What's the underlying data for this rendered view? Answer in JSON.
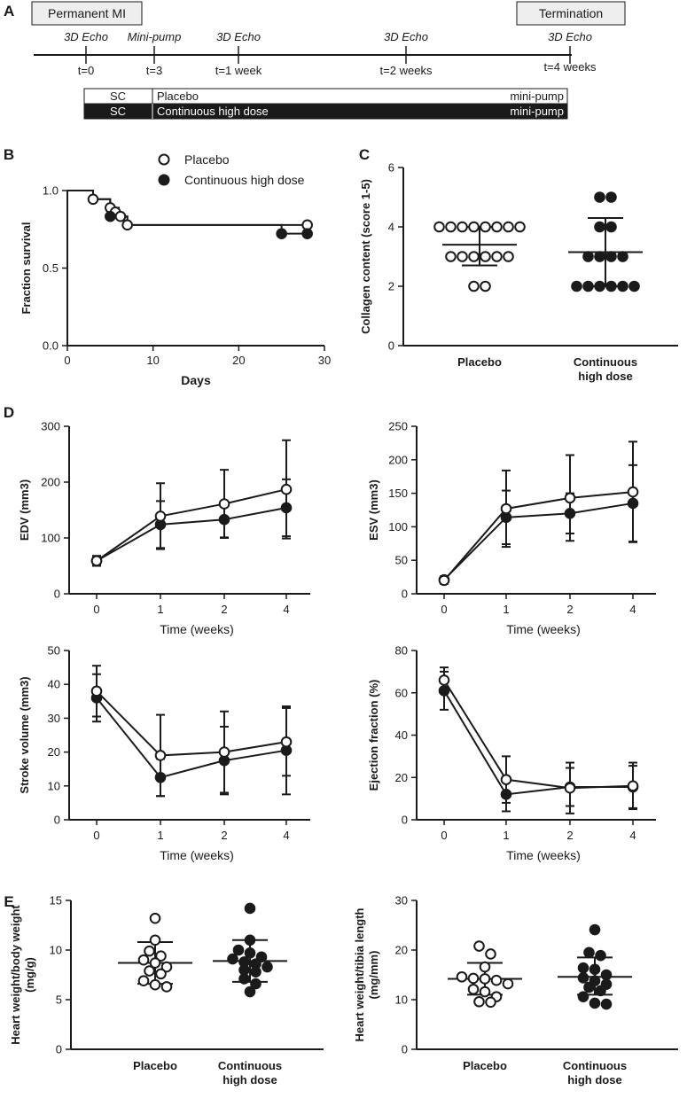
{
  "colors": {
    "ink": "#1a1a1a",
    "box_fill": "#eeeeee",
    "open_fill": "#ffffff"
  },
  "panel_a": {
    "letter": "A",
    "box_left": "Permanent MI",
    "box_right": "Termination",
    "events": [
      {
        "top": "3D Echo",
        "bottom": "t=0"
      },
      {
        "top": "Mini-pump",
        "bottom": "t=3"
      },
      {
        "top": "3D Echo",
        "bottom": "t=1 week"
      },
      {
        "top": "3D Echo",
        "bottom": "t=2 weeks"
      },
      {
        "top": "3D Echo",
        "bottom": "t=4 weeks"
      }
    ],
    "bar_rows": [
      {
        "left": "SC",
        "mid": "Placebo",
        "right": "mini-pump"
      },
      {
        "left": "SC",
        "mid": "Continuous high dose",
        "right": "mini-pump"
      }
    ]
  },
  "legend": {
    "open": "Placebo",
    "filled": "Continuous high dose"
  },
  "chart_data": [
    {
      "id": "B",
      "type": "line",
      "letter": "B",
      "xlabel": "Days",
      "ylabel": "Fraction survival",
      "xlim": [
        0,
        30
      ],
      "ylim": [
        0,
        1
      ],
      "xticks": [
        "0",
        "10",
        "20",
        "30"
      ],
      "yticks": [
        "0.0",
        "0.5",
        "1.0"
      ],
      "series": [
        {
          "name": "Placebo",
          "steps": [
            [
              0,
              1.0
            ],
            [
              3,
              1.0
            ],
            [
              3,
              0.944
            ],
            [
              5,
              0.944
            ],
            [
              5,
              0.889
            ],
            [
              6,
              0.889
            ],
            [
              6,
              0.833
            ],
            [
              7,
              0.833
            ],
            [
              7,
              0.778
            ],
            [
              28,
              0.778
            ]
          ],
          "markers": [
            [
              3,
              0.944
            ],
            [
              5,
              0.889
            ],
            [
              5.6,
              0.861
            ],
            [
              6.2,
              0.833
            ],
            [
              7,
              0.778
            ],
            [
              28,
              0.778
            ]
          ]
        },
        {
          "name": "Continuous high dose",
          "steps": [
            [
              0,
              1.0
            ],
            [
              3,
              1.0
            ],
            [
              3,
              0.944
            ],
            [
              5,
              0.944
            ],
            [
              5,
              0.833
            ],
            [
              7,
              0.833
            ],
            [
              7,
              0.778
            ],
            [
              25,
              0.778
            ],
            [
              25,
              0.722
            ],
            [
              28,
              0.722
            ]
          ],
          "markers": [
            [
              5,
              0.833
            ],
            [
              25,
              0.722
            ],
            [
              28,
              0.722
            ]
          ]
        }
      ]
    },
    {
      "id": "C",
      "type": "scatter",
      "letter": "C",
      "ylabel": "Collagen content (score 1-5)",
      "ylim": [
        0,
        6
      ],
      "yticks": [
        "0",
        "2",
        "4",
        "6"
      ],
      "categories": [
        "Placebo",
        "Continuous high dose"
      ],
      "cat_labels": [
        [
          "Placebo"
        ],
        [
          "Continuous",
          "high dose"
        ]
      ],
      "series": [
        {
          "name": "Placebo",
          "points": [
            4,
            4,
            4,
            4,
            4,
            4,
            4,
            4,
            3,
            3,
            3,
            3,
            3,
            3,
            2,
            2
          ],
          "mean": 3.4,
          "sd_low": 2.7,
          "sd_high": 4.0
        },
        {
          "name": "Continuous high dose",
          "points": [
            5,
            5,
            4,
            4,
            3,
            3,
            3,
            3,
            2,
            2,
            2,
            2,
            2,
            2
          ],
          "mean": 3.15,
          "sd_low": 2.0,
          "sd_high": 4.3
        }
      ]
    },
    {
      "id": "D1",
      "type": "line",
      "letter": "D",
      "xlabel": "Time (weeks)",
      "ylabel": "EDV (mm3)",
      "ylim": [
        0,
        300
      ],
      "yticks": [
        "0",
        "100",
        "200",
        "300"
      ],
      "categories": [
        "0",
        "1",
        "2",
        "4"
      ],
      "series": [
        {
          "name": "Placebo",
          "values": [
            59,
            139,
            161,
            187
          ],
          "err": [
            7,
            59,
            61,
            88
          ]
        },
        {
          "name": "Continuous high dose",
          "values": [
            59,
            124,
            133,
            154
          ],
          "err": [
            9,
            42,
            32,
            51
          ]
        }
      ]
    },
    {
      "id": "D2",
      "type": "line",
      "xlabel": "Time (weeks)",
      "ylabel": "ESV (mm3)",
      "ylim": [
        0,
        250
      ],
      "yticks": [
        "0",
        "50",
        "100",
        "150",
        "200",
        "250"
      ],
      "categories": [
        "0",
        "1",
        "2",
        "4"
      ],
      "series": [
        {
          "name": "Placebo",
          "values": [
            20,
            127,
            143,
            152
          ],
          "err": [
            5,
            57,
            64,
            75
          ]
        },
        {
          "name": "Continuous high dose",
          "values": [
            21,
            114,
            120,
            135
          ],
          "err": [
            5,
            40,
            30,
            57
          ]
        }
      ]
    },
    {
      "id": "D3",
      "type": "line",
      "xlabel": "Time (weeks)",
      "ylabel": "Stroke volume (mm3)",
      "ylim": [
        0,
        50
      ],
      "yticks": [
        "0",
        "10",
        "20",
        "30",
        "40",
        "50"
      ],
      "categories": [
        "0",
        "1",
        "2",
        "4"
      ],
      "series": [
        {
          "name": "Placebo",
          "values": [
            38,
            19,
            20,
            23
          ],
          "err": [
            7.5,
            12,
            12,
            10
          ]
        },
        {
          "name": "Continuous high dose",
          "values": [
            36,
            12.5,
            17.5,
            20.5
          ],
          "err": [
            7,
            5.5,
            10,
            13
          ]
        }
      ]
    },
    {
      "id": "D4",
      "type": "line",
      "xlabel": "Time (weeks)",
      "ylabel": "Ejection fraction (%)",
      "ylim": [
        0,
        80
      ],
      "yticks": [
        "0",
        "20",
        "40",
        "60",
        "80"
      ],
      "categories": [
        "0",
        "1",
        "2",
        "4"
      ],
      "series": [
        {
          "name": "Placebo",
          "values": [
            66,
            19,
            15,
            16
          ],
          "err": [
            6,
            11,
            12,
            11
          ]
        },
        {
          "name": "Continuous high dose",
          "values": [
            61,
            12,
            15.5,
            15.5
          ],
          "err": [
            9,
            8,
            9,
            10
          ]
        }
      ]
    },
    {
      "id": "E1",
      "type": "scatter",
      "letter": "E",
      "ylabel": "Heart weight/body weight (mg/g)",
      "ylabel_lines": [
        "Heart weight/body weight",
        "(mg/g)"
      ],
      "ylim": [
        0,
        15
      ],
      "yticks": [
        "0",
        "5",
        "10",
        "15"
      ],
      "categories": [
        "Placebo",
        "Continuous high dose"
      ],
      "cat_labels": [
        [
          "Placebo"
        ],
        [
          "Continuous",
          "high dose"
        ]
      ],
      "series": [
        {
          "name": "Placebo",
          "points": [
            13.2,
            11.0,
            9.9,
            9.4,
            9.0,
            8.7,
            8.3,
            7.9,
            7.6,
            6.9,
            6.5,
            6.3
          ],
          "mean": 8.7,
          "sd_low": 6.6,
          "sd_high": 10.8
        },
        {
          "name": "Continuous high dose",
          "points": [
            14.2,
            11.0,
            10.0,
            9.7,
            9.3,
            9.1,
            8.8,
            8.6,
            8.3,
            8.0,
            7.8,
            7.1,
            6.6,
            5.8
          ],
          "mean": 8.9,
          "sd_low": 6.8,
          "sd_high": 11.0
        }
      ]
    },
    {
      "id": "E2",
      "type": "scatter",
      "ylabel": "Heart weight/tibia length (mg/mm)",
      "ylabel_lines": [
        "Heart weight/tibia length",
        "(mg/mm)"
      ],
      "ylim": [
        0,
        30
      ],
      "yticks": [
        "0",
        "10",
        "20",
        "30"
      ],
      "categories": [
        "Placebo",
        "Continuous high dose"
      ],
      "cat_labels": [
        [
          "Placebo"
        ],
        [
          "Continuous",
          "high dose"
        ]
      ],
      "series": [
        {
          "name": "Placebo",
          "points": [
            20.8,
            19.2,
            16.6,
            14.6,
            14.3,
            14.2,
            13.9,
            13.2,
            12.1,
            11.6,
            10.6,
            9.6,
            9.5
          ],
          "mean": 14.2,
          "sd_low": 11.0,
          "sd_high": 17.4
        },
        {
          "name": "Continuous high dose",
          "points": [
            24.1,
            19.5,
            18.9,
            16.4,
            16.1,
            15.0,
            14.4,
            13.8,
            13.1,
            12.5,
            11.8,
            10.6,
            9.3,
            9.1
          ],
          "mean": 14.6,
          "sd_low": 11.0,
          "sd_high": 18.5
        }
      ]
    }
  ]
}
